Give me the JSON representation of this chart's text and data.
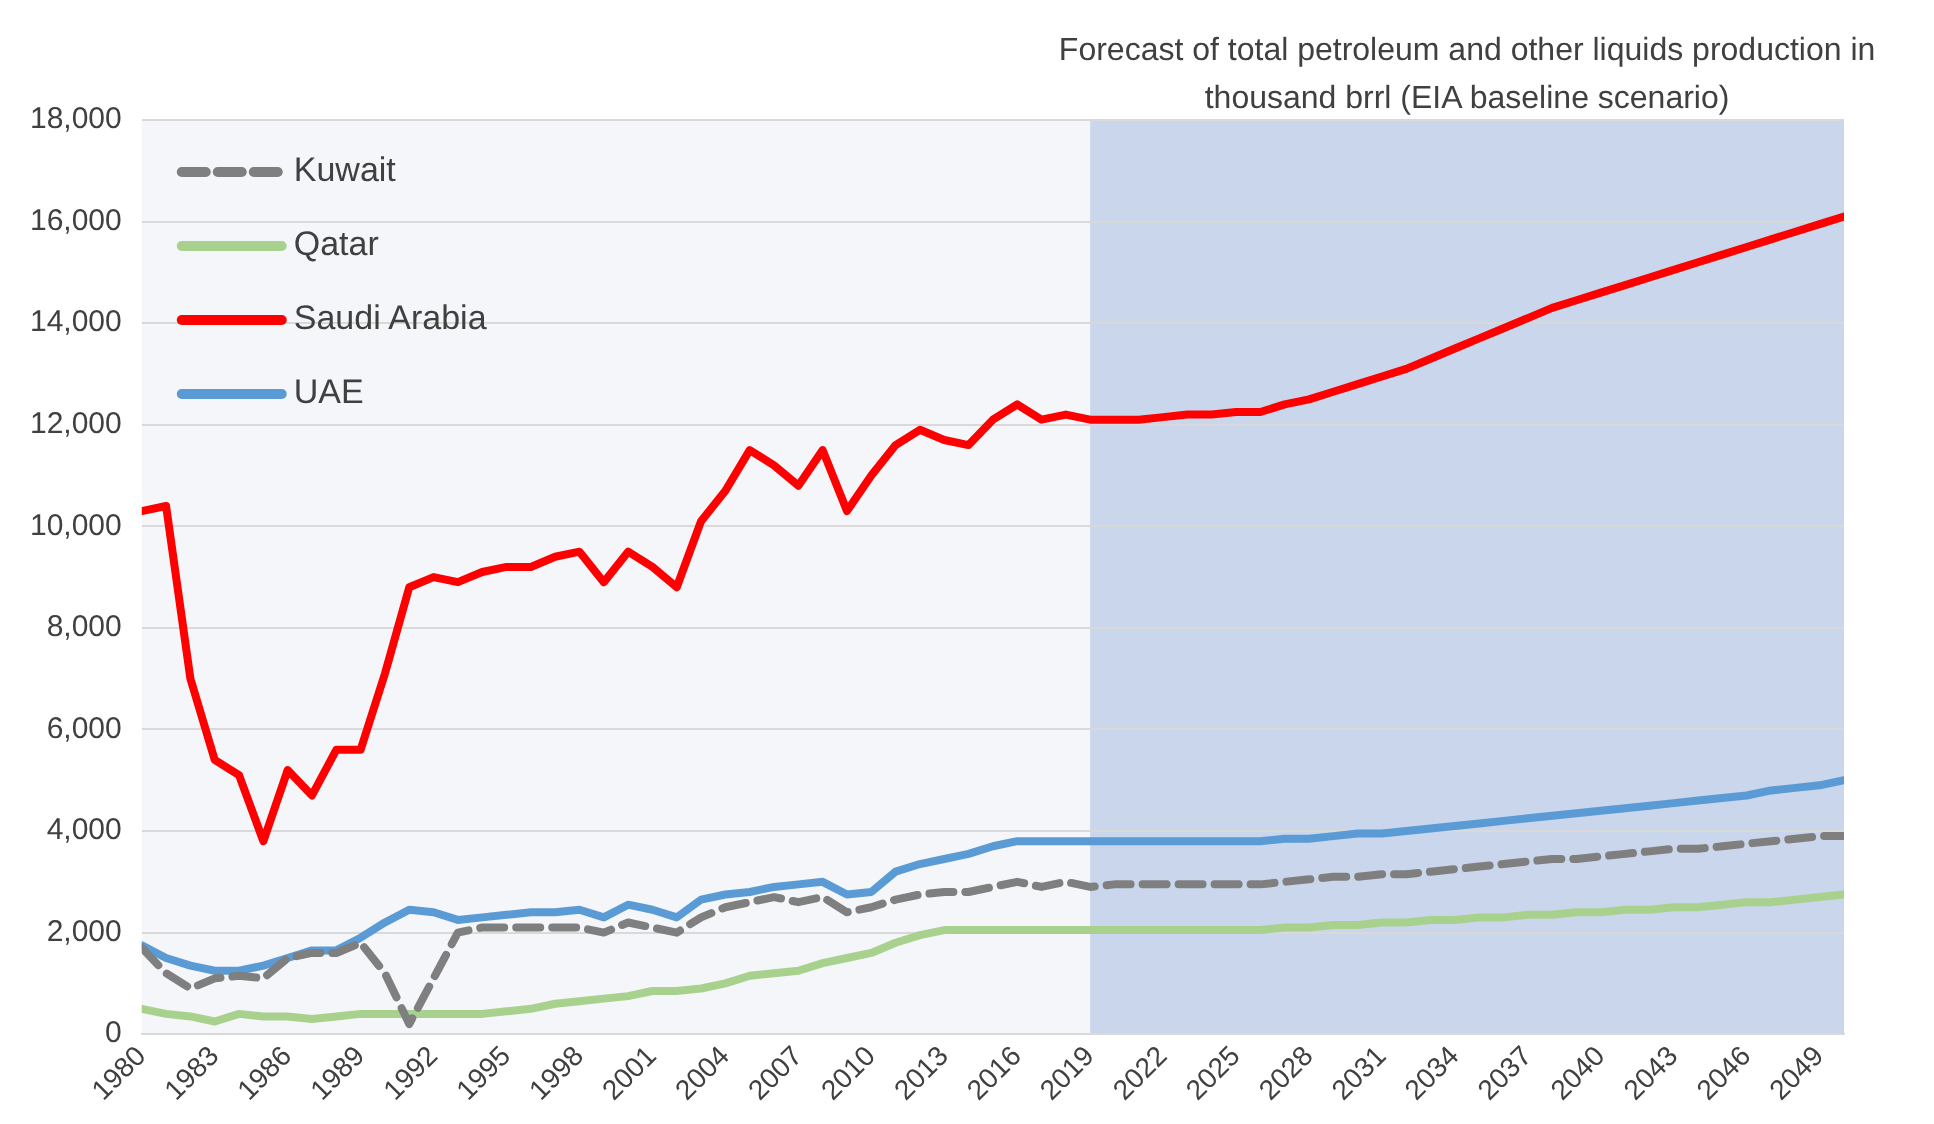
{
  "chart_data": {
    "type": "line",
    "legend": "top left",
    "grid": "y",
    "marker": "none",
    "x": [
      1980,
      1981,
      1982,
      1983,
      1984,
      1985,
      1986,
      1987,
      1988,
      1989,
      1990,
      1991,
      1992,
      1993,
      1994,
      1995,
      1996,
      1997,
      1998,
      1999,
      2000,
      2001,
      2002,
      2003,
      2004,
      2005,
      2006,
      2007,
      2008,
      2009,
      2010,
      2011,
      2012,
      2013,
      2014,
      2015,
      2016,
      2017,
      2018,
      2019,
      2020,
      2021,
      2022,
      2023,
      2024,
      2025,
      2026,
      2027,
      2028,
      2029,
      2030,
      2031,
      2032,
      2033,
      2034,
      2035,
      2036,
      2037,
      2038,
      2039,
      2040,
      2041,
      2042,
      2043,
      2044,
      2045,
      2046,
      2047,
      2048,
      2049,
      2050
    ],
    "xlim": [
      1980,
      2050
    ],
    "xticks": [
      1980,
      1983,
      1986,
      1989,
      1992,
      1995,
      1998,
      2001,
      2004,
      2007,
      2010,
      2013,
      2016,
      2019,
      2022,
      2025,
      2028,
      2031,
      2034,
      2037,
      2040,
      2043,
      2046,
      2049
    ],
    "ylim": [
      0,
      18000
    ],
    "yticks": [
      {
        "value": 0,
        "label": "0"
      },
      {
        "value": 2000,
        "label": "2,000"
      },
      {
        "value": 4000,
        "label": "4,000"
      },
      {
        "value": 6000,
        "label": "6,000"
      },
      {
        "value": 8000,
        "label": "8,000"
      },
      {
        "value": 10000,
        "label": "10,000"
      },
      {
        "value": 12000,
        "label": "12,000"
      },
      {
        "value": 14000,
        "label": "14,000"
      },
      {
        "value": 16000,
        "label": "16,000"
      },
      {
        "value": 18000,
        "label": "18,000"
      }
    ],
    "bands": [
      {
        "axis": "x",
        "from": 2019,
        "to": 2050,
        "label": "Forecast of total petroleum and other liquids production in thousand brrl (EIA baseline scenario)",
        "color": "#c9d6eb"
      }
    ],
    "series": [
      {
        "name": "Kuwait",
        "color": "#7f7f7f",
        "line_style": "dashed",
        "values": [
          1700,
          1200,
          900,
          1100,
          1150,
          1100,
          1500,
          1600,
          1600,
          1800,
          1200,
          200,
          1100,
          2000,
          2100,
          2100,
          2100,
          2100,
          2100,
          2000,
          2200,
          2100,
          2000,
          2300,
          2500,
          2600,
          2700,
          2600,
          2700,
          2400,
          2500,
          2650,
          2750,
          2800,
          2800,
          2900,
          3000,
          2900,
          3000,
          2900,
          2950,
          2950,
          2950,
          2950,
          2950,
          2950,
          2950,
          3000,
          3050,
          3100,
          3100,
          3150,
          3150,
          3200,
          3250,
          3300,
          3350,
          3400,
          3450,
          3450,
          3500,
          3550,
          3600,
          3650,
          3650,
          3700,
          3750,
          3800,
          3850,
          3900,
          3900
        ]
      },
      {
        "name": "Qatar",
        "color": "#a9d18e",
        "line_style": "solid",
        "values": [
          500,
          400,
          350,
          250,
          400,
          350,
          350,
          300,
          350,
          400,
          400,
          400,
          400,
          400,
          400,
          450,
          500,
          600,
          650,
          700,
          750,
          850,
          850,
          900,
          1000,
          1150,
          1200,
          1250,
          1400,
          1500,
          1600,
          1800,
          1950,
          2050,
          2050,
          2050,
          2050,
          2050,
          2050,
          2050,
          2050,
          2050,
          2050,
          2050,
          2050,
          2050,
          2050,
          2100,
          2100,
          2150,
          2150,
          2200,
          2200,
          2250,
          2250,
          2300,
          2300,
          2350,
          2350,
          2400,
          2400,
          2450,
          2450,
          2500,
          2500,
          2550,
          2600,
          2600,
          2650,
          2700,
          2750
        ]
      },
      {
        "name": "Saudi Arabia",
        "color": "#ff0000",
        "line_style": "solid",
        "values": [
          10300,
          10400,
          7000,
          5400,
          5100,
          3800,
          5200,
          4700,
          5600,
          5600,
          7100,
          8800,
          9000,
          8900,
          9100,
          9200,
          9200,
          9400,
          9500,
          8900,
          9500,
          9200,
          8800,
          10100,
          10700,
          11500,
          11200,
          10800,
          11500,
          10300,
          11000,
          11600,
          11900,
          11700,
          11600,
          12100,
          12400,
          12100,
          12200,
          12100,
          12100,
          12100,
          12150,
          12200,
          12200,
          12250,
          12250,
          12400,
          12500,
          12650,
          12800,
          12950,
          13100,
          13300,
          13500,
          13700,
          13900,
          14100,
          14300,
          14450,
          14600,
          14750,
          14900,
          15050,
          15200,
          15350,
          15500,
          15650,
          15800,
          15950,
          16100
        ]
      },
      {
        "name": "UAE",
        "color": "#5b9bd5",
        "line_style": "solid",
        "values": [
          1750,
          1500,
          1350,
          1250,
          1250,
          1350,
          1500,
          1650,
          1650,
          1900,
          2200,
          2450,
          2400,
          2250,
          2300,
          2350,
          2400,
          2400,
          2450,
          2300,
          2550,
          2450,
          2300,
          2650,
          2750,
          2800,
          2900,
          2950,
          3000,
          2750,
          2800,
          3200,
          3350,
          3450,
          3550,
          3700,
          3800,
          3800,
          3800,
          3800,
          3800,
          3800,
          3800,
          3800,
          3800,
          3800,
          3800,
          3850,
          3850,
          3900,
          3950,
          3950,
          4000,
          4050,
          4100,
          4150,
          4200,
          4250,
          4300,
          4350,
          4400,
          4450,
          4500,
          4550,
          4600,
          4650,
          4700,
          4800,
          4850,
          4900,
          5000
        ]
      }
    ]
  }
}
